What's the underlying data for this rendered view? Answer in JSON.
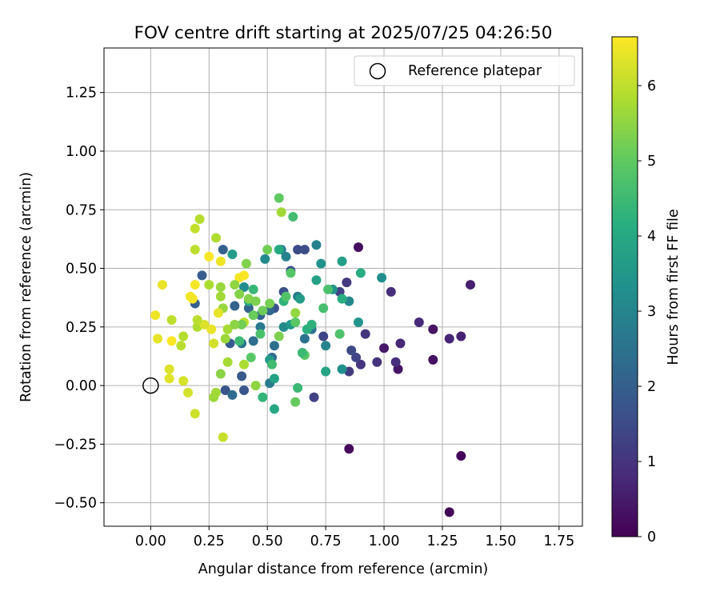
{
  "chart_data": {
    "type": "scatter",
    "title": "FOV centre drift starting at 2025/07/25 04:26:50",
    "xlabel": "Angular distance from reference (arcmin)",
    "ylabel": "Rotation from reference (arcmin)",
    "xlim": [
      -0.2,
      1.85
    ],
    "ylim": [
      -0.6,
      1.44
    ],
    "xticks": [
      0.0,
      0.25,
      0.5,
      0.75,
      1.0,
      1.25,
      1.5,
      1.75
    ],
    "xtick_labels": [
      "0.00",
      "0.25",
      "0.50",
      "0.75",
      "1.00",
      "1.25",
      "1.50",
      "1.75"
    ],
    "yticks": [
      -0.5,
      -0.25,
      0.0,
      0.25,
      0.5,
      0.75,
      1.0,
      1.25
    ],
    "ytick_labels": [
      "−0.50",
      "−0.25",
      "0.00",
      "0.25",
      "0.50",
      "0.75",
      "1.00",
      "1.25"
    ],
    "grid": true,
    "legend": {
      "position": "top-right",
      "label": "Reference platepar",
      "marker": "open-circle"
    },
    "reference_point": {
      "x": 0.0,
      "y": 0.0
    },
    "colorbar": {
      "label": "Hours from first FF file",
      "min": 0,
      "max": 6.65,
      "ticks": [
        0,
        1,
        2,
        3,
        4,
        5,
        6
      ],
      "colormap": "viridis"
    },
    "points": [
      {
        "x": 1.28,
        "y": -0.54,
        "h": 0.05
      },
      {
        "x": 1.33,
        "y": -0.3,
        "h": 0.1
      },
      {
        "x": 0.85,
        "y": -0.27,
        "h": 0.15
      },
      {
        "x": 0.89,
        "y": 0.59,
        "h": 0.25
      },
      {
        "x": 1.21,
        "y": 0.11,
        "h": 0.3
      },
      {
        "x": 1.21,
        "y": 0.24,
        "h": 0.35
      },
      {
        "x": 1.06,
        "y": 0.07,
        "h": 0.4
      },
      {
        "x": 1.0,
        "y": 0.16,
        "h": 0.45
      },
      {
        "x": 1.37,
        "y": 0.43,
        "h": 0.6
      },
      {
        "x": 1.33,
        "y": 0.21,
        "h": 0.65
      },
      {
        "x": 1.28,
        "y": 0.2,
        "h": 0.7
      },
      {
        "x": 1.15,
        "y": 0.27,
        "h": 0.8
      },
      {
        "x": 1.07,
        "y": 0.18,
        "h": 0.75
      },
      {
        "x": 1.03,
        "y": 0.4,
        "h": 0.85
      },
      {
        "x": 1.05,
        "y": 0.1,
        "h": 0.9
      },
      {
        "x": 0.97,
        "y": 0.1,
        "h": 0.95
      },
      {
        "x": 0.9,
        "y": 0.09,
        "h": 1.0
      },
      {
        "x": 0.92,
        "y": 0.22,
        "h": 1.05
      },
      {
        "x": 0.85,
        "y": 0.06,
        "h": 1.15
      },
      {
        "x": 0.84,
        "y": 0.44,
        "h": 1.1
      },
      {
        "x": 0.7,
        "y": -0.05,
        "h": 1.3
      },
      {
        "x": 0.81,
        "y": 0.4,
        "h": 1.25
      },
      {
        "x": 0.88,
        "y": 0.12,
        "h": 1.35
      },
      {
        "x": 0.74,
        "y": 0.21,
        "h": 1.4
      },
      {
        "x": 0.86,
        "y": 0.15,
        "h": 1.45
      },
      {
        "x": 0.63,
        "y": 0.58,
        "h": 1.5
      },
      {
        "x": 0.66,
        "y": 0.58,
        "h": 1.55
      },
      {
        "x": 0.6,
        "y": 0.49,
        "h": 1.6
      },
      {
        "x": 0.57,
        "y": 0.4,
        "h": 1.65
      },
      {
        "x": 0.53,
        "y": 0.33,
        "h": 1.7
      },
      {
        "x": 0.32,
        "y": -0.02,
        "h": 1.75
      },
      {
        "x": 0.4,
        "y": -0.02,
        "h": 1.8
      },
      {
        "x": 0.39,
        "y": 0.04,
        "h": 1.85
      },
      {
        "x": 0.34,
        "y": 0.18,
        "h": 1.9
      },
      {
        "x": 0.22,
        "y": 0.47,
        "h": 1.95
      },
      {
        "x": 0.19,
        "y": 0.35,
        "h": 2.0
      },
      {
        "x": 0.31,
        "y": 0.58,
        "h": 2.05
      },
      {
        "x": 0.36,
        "y": 0.34,
        "h": 2.1
      },
      {
        "x": 0.42,
        "y": 0.33,
        "h": 2.15
      },
      {
        "x": 0.47,
        "y": 0.3,
        "h": 2.2
      },
      {
        "x": 0.51,
        "y": 0.32,
        "h": 2.25
      },
      {
        "x": 0.52,
        "y": 0.12,
        "h": 2.3
      },
      {
        "x": 0.35,
        "y": -0.04,
        "h": 2.35
      },
      {
        "x": 0.44,
        "y": 0.19,
        "h": 2.4
      },
      {
        "x": 0.53,
        "y": 0.17,
        "h": 2.45
      },
      {
        "x": 0.66,
        "y": 0.2,
        "h": 2.5
      },
      {
        "x": 0.69,
        "y": 0.24,
        "h": 2.55
      },
      {
        "x": 0.39,
        "y": 0.18,
        "h": 2.6
      },
      {
        "x": 0.47,
        "y": 0.25,
        "h": 2.7
      },
      {
        "x": 0.51,
        "y": 0.01,
        "h": 2.75
      },
      {
        "x": 0.63,
        "y": 0.38,
        "h": 2.8
      },
      {
        "x": 0.56,
        "y": 0.58,
        "h": 2.85
      },
      {
        "x": 0.71,
        "y": 0.6,
        "h": 2.9
      },
      {
        "x": 0.75,
        "y": 0.17,
        "h": 3.0
      },
      {
        "x": 0.85,
        "y": 0.36,
        "h": 3.05
      },
      {
        "x": 0.57,
        "y": 0.25,
        "h": 3.1
      },
      {
        "x": 0.49,
        "y": 0.54,
        "h": 3.15
      },
      {
        "x": 0.4,
        "y": 0.42,
        "h": 3.2
      },
      {
        "x": 0.99,
        "y": 0.46,
        "h": 3.25
      },
      {
        "x": 0.82,
        "y": 0.07,
        "h": 3.3
      },
      {
        "x": 0.73,
        "y": 0.52,
        "h": 3.35
      },
      {
        "x": 0.89,
        "y": 0.27,
        "h": 3.4
      },
      {
        "x": 0.78,
        "y": 0.41,
        "h": 3.45
      },
      {
        "x": 0.6,
        "y": 0.26,
        "h": 3.5
      },
      {
        "x": 0.51,
        "y": 0.11,
        "h": 3.55
      },
      {
        "x": 0.35,
        "y": 0.56,
        "h": 3.6
      },
      {
        "x": 0.64,
        "y": 0.37,
        "h": 3.65
      },
      {
        "x": 0.82,
        "y": 0.53,
        "h": 3.7
      },
      {
        "x": 0.71,
        "y": 0.45,
        "h": 3.75
      },
      {
        "x": 0.53,
        "y": 0.03,
        "h": 3.8
      },
      {
        "x": 0.75,
        "y": 0.06,
        "h": 3.85
      },
      {
        "x": 0.42,
        "y": 0.36,
        "h": 3.9
      },
      {
        "x": 0.53,
        "y": -0.1,
        "h": 3.95
      },
      {
        "x": 0.65,
        "y": 0.14,
        "h": 4.0
      },
      {
        "x": 0.55,
        "y": 0.58,
        "h": 4.05
      },
      {
        "x": 0.9,
        "y": 0.48,
        "h": 4.1
      },
      {
        "x": 0.82,
        "y": 0.37,
        "h": 4.15
      },
      {
        "x": 0.67,
        "y": 0.24,
        "h": 4.2
      },
      {
        "x": 0.57,
        "y": 0.36,
        "h": 4.3
      },
      {
        "x": 0.48,
        "y": -0.05,
        "h": 4.35
      },
      {
        "x": 0.44,
        "y": 0.41,
        "h": 4.4
      },
      {
        "x": 0.63,
        "y": -0.01,
        "h": 4.45
      },
      {
        "x": 0.38,
        "y": 0.19,
        "h": 4.5
      },
      {
        "x": 0.52,
        "y": 0.09,
        "h": 4.55
      },
      {
        "x": 0.61,
        "y": 0.72,
        "h": 4.6
      },
      {
        "x": 0.74,
        "y": 0.33,
        "h": 4.65
      },
      {
        "x": 0.76,
        "y": 0.41,
        "h": 4.7
      },
      {
        "x": 0.81,
        "y": 0.22,
        "h": 4.75
      },
      {
        "x": 0.58,
        "y": 0.38,
        "h": 4.8
      },
      {
        "x": 0.6,
        "y": 0.48,
        "h": 4.85
      },
      {
        "x": 0.62,
        "y": 0.27,
        "h": 4.9
      },
      {
        "x": 0.66,
        "y": 0.13,
        "h": 4.95
      },
      {
        "x": 0.55,
        "y": 0.8,
        "h": 5.0
      },
      {
        "x": 0.62,
        "y": -0.07,
        "h": 5.05
      },
      {
        "x": 0.44,
        "y": 0.3,
        "h": 5.1
      },
      {
        "x": 0.48,
        "y": 0.32,
        "h": 5.15
      },
      {
        "x": 0.5,
        "y": 0.58,
        "h": 5.2
      },
      {
        "x": 0.51,
        "y": 0.35,
        "h": 5.25
      },
      {
        "x": 0.55,
        "y": 0.21,
        "h": 5.3
      },
      {
        "x": 0.41,
        "y": 0.52,
        "h": 5.35
      },
      {
        "x": 0.38,
        "y": 0.39,
        "h": 5.4
      },
      {
        "x": 0.3,
        "y": 0.05,
        "h": 5.45
      },
      {
        "x": 0.45,
        "y": 0.0,
        "h": 5.5
      },
      {
        "x": 0.62,
        "y": 0.31,
        "h": 5.55
      },
      {
        "x": 0.31,
        "y": 0.33,
        "h": 5.6
      },
      {
        "x": 0.27,
        "y": -0.05,
        "h": 5.65
      },
      {
        "x": 0.56,
        "y": 0.74,
        "h": 5.7
      },
      {
        "x": 0.33,
        "y": 0.1,
        "h": 5.75
      },
      {
        "x": 0.4,
        "y": 0.09,
        "h": 5.8
      },
      {
        "x": 0.28,
        "y": 0.63,
        "h": 5.85
      },
      {
        "x": 0.21,
        "y": 0.71,
        "h": 5.9
      },
      {
        "x": 0.4,
        "y": 0.27,
        "h": 5.95
      },
      {
        "x": 0.19,
        "y": 0.58,
        "h": 6.0
      },
      {
        "x": 0.19,
        "y": 0.67,
        "h": 6.05
      },
      {
        "x": 0.31,
        "y": -0.22,
        "h": 6.1
      },
      {
        "x": 0.19,
        "y": -0.12,
        "h": 6.15
      },
      {
        "x": 0.16,
        "y": -0.03,
        "h": 6.2
      },
      {
        "x": 0.14,
        "y": 0.02,
        "h": 6.25
      },
      {
        "x": 0.08,
        "y": 0.07,
        "h": 6.3
      },
      {
        "x": 0.08,
        "y": 0.03,
        "h": 6.35
      },
      {
        "x": 0.03,
        "y": 0.2,
        "h": 6.4
      },
      {
        "x": 0.05,
        "y": 0.43,
        "h": 6.45
      },
      {
        "x": 0.02,
        "y": 0.3,
        "h": 6.5
      },
      {
        "x": 0.19,
        "y": 0.43,
        "h": 6.55
      },
      {
        "x": 0.18,
        "y": 0.37,
        "h": 6.6
      },
      {
        "x": 0.09,
        "y": 0.19,
        "h": 6.65
      },
      {
        "x": 0.25,
        "y": 0.55,
        "h": 6.6
      },
      {
        "x": 0.38,
        "y": 0.46,
        "h": 6.55
      },
      {
        "x": 0.4,
        "y": 0.47,
        "h": 6.6
      },
      {
        "x": 0.3,
        "y": 0.53,
        "h": 6.5
      },
      {
        "x": 0.26,
        "y": 0.24,
        "h": 6.45
      },
      {
        "x": 0.27,
        "y": 0.18,
        "h": 6.2
      },
      {
        "x": 0.09,
        "y": 0.28,
        "h": 6.0
      },
      {
        "x": 0.13,
        "y": 0.17,
        "h": 5.95
      },
      {
        "x": 0.14,
        "y": 0.21,
        "h": 5.9
      },
      {
        "x": 0.2,
        "y": 0.25,
        "h": 5.85
      },
      {
        "x": 0.25,
        "y": 0.43,
        "h": 5.8
      },
      {
        "x": 0.33,
        "y": 0.24,
        "h": 5.75
      },
      {
        "x": 0.3,
        "y": 0.38,
        "h": 5.7
      },
      {
        "x": 0.3,
        "y": 0.42,
        "h": 5.6
      },
      {
        "x": 0.36,
        "y": 0.43,
        "h": 5.5
      },
      {
        "x": 0.42,
        "y": 0.37,
        "h": 5.4
      },
      {
        "x": 0.45,
        "y": 0.36,
        "h": 5.3
      },
      {
        "x": 0.39,
        "y": 0.26,
        "h": 5.2
      },
      {
        "x": 0.32,
        "y": 0.2,
        "h": 5.65
      },
      {
        "x": 0.29,
        "y": 0.31,
        "h": 6.4
      },
      {
        "x": 0.23,
        "y": 0.26,
        "h": 6.3
      },
      {
        "x": 0.17,
        "y": 0.38,
        "h": 6.55
      },
      {
        "x": 0.2,
        "y": 0.28,
        "h": 5.95
      },
      {
        "x": 0.36,
        "y": 0.26,
        "h": 5.45
      },
      {
        "x": 0.47,
        "y": 0.22,
        "h": 4.7
      },
      {
        "x": 0.69,
        "y": 0.26,
        "h": 4.25
      },
      {
        "x": 0.58,
        "y": 0.55,
        "h": 2.95
      },
      {
        "x": 0.65,
        "y": 0.14,
        "h": 4.5
      },
      {
        "x": 0.28,
        "y": -0.03,
        "h": 5.7
      },
      {
        "x": 0.43,
        "y": 0.12,
        "h": 4.9
      }
    ]
  }
}
